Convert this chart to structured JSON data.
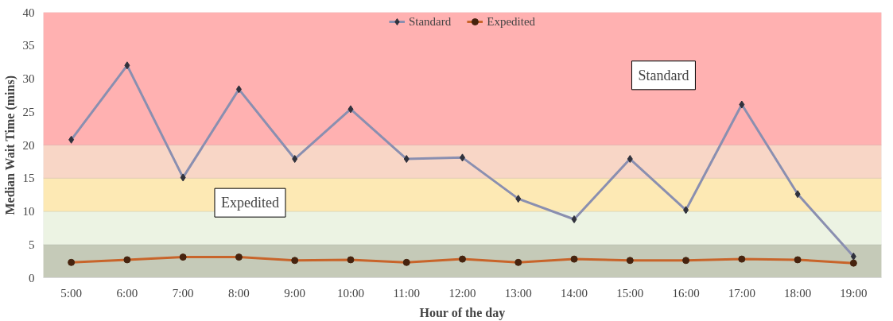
{
  "chart_data": {
    "type": "line",
    "xlabel": "Hour of the day",
    "ylabel": "Median Wait Time (mins)",
    "categories": [
      "5:00",
      "6:00",
      "7:00",
      "8:00",
      "9:00",
      "10:00",
      "11:00",
      "12:00",
      "13:00",
      "14:00",
      "15:00",
      "16:00",
      "17:00",
      "18:00",
      "19:00"
    ],
    "series": [
      {
        "name": "Standard",
        "color": "#8a8fb0",
        "marker": "diamond",
        "values": [
          20.8,
          32,
          15.1,
          28.4,
          17.9,
          25.4,
          17.9,
          18.1,
          11.9,
          8.8,
          17.9,
          10.2,
          26.1,
          12.6,
          3.2
        ]
      },
      {
        "name": "Expedited",
        "color": "#c8642a",
        "marker": "circle",
        "values": [
          2.3,
          2.7,
          3.1,
          3.1,
          2.6,
          2.7,
          2.3,
          2.8,
          2.3,
          2.8,
          2.6,
          2.6,
          2.8,
          2.7,
          2.2
        ]
      }
    ],
    "ylim": [
      0,
      40
    ],
    "yticks": [
      0,
      5,
      10,
      15,
      20,
      25,
      30,
      35,
      40
    ],
    "legend": "top",
    "line_style": "solid",
    "bands": [
      {
        "axis": "y",
        "from": 0,
        "to": 5,
        "color": "#c5cab8",
        "label": null
      },
      {
        "axis": "y",
        "from": 5,
        "to": 10,
        "color": "#ecf3e3",
        "label": null
      },
      {
        "axis": "y",
        "from": 10,
        "to": 15,
        "color": "#fde9b4",
        "label": null
      },
      {
        "axis": "y",
        "from": 15,
        "to": 20,
        "color": "#f8d6c6",
        "label": null
      },
      {
        "axis": "y",
        "from": 20,
        "to": 40,
        "color": "#ffb1b1",
        "label": null
      }
    ],
    "annotations": [
      "Standard",
      "Expedited"
    ]
  }
}
